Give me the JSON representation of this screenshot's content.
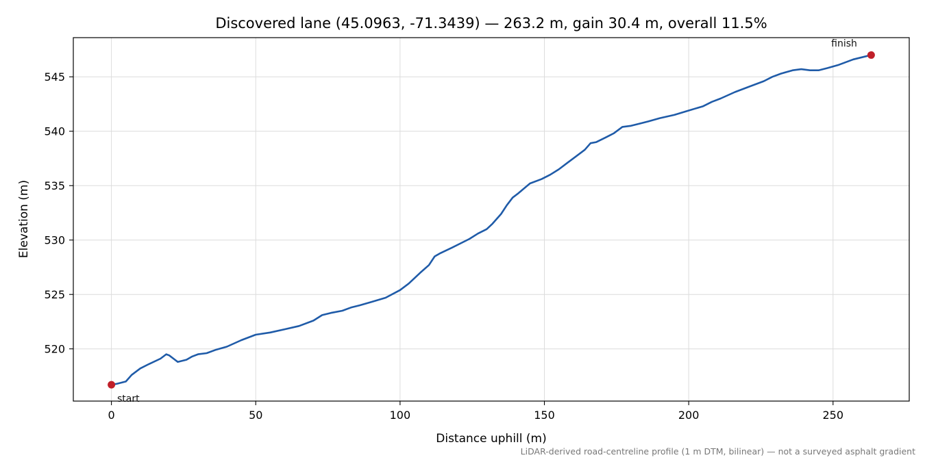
{
  "chart_data": {
    "type": "line",
    "title": "Discovered lane (45.0963, -71.3439) — 263.2 m, gain 30.4 m, overall 11.5%",
    "xlabel": "Distance uphill (m)",
    "ylabel": "Elevation (m)",
    "xlim": [
      -13.2,
      276.4
    ],
    "ylim": [
      515.2,
      548.6
    ],
    "x_ticks": [
      0,
      50,
      100,
      150,
      200,
      250
    ],
    "y_ticks": [
      520,
      525,
      530,
      535,
      540,
      545
    ],
    "grid": true,
    "line_color": "#1f5ba8",
    "marker_color": "#c0202a",
    "series": [
      {
        "x": [
          0,
          2,
          5,
          7,
          10,
          13,
          17,
          19,
          20,
          23,
          26,
          28,
          30,
          33,
          36,
          40,
          45,
          50,
          55,
          60,
          65,
          70,
          73,
          76,
          80,
          83,
          86,
          90,
          95,
          100,
          103,
          107,
          110,
          112,
          114,
          118,
          121,
          124,
          127,
          130,
          132,
          135,
          137,
          139,
          141,
          145,
          149,
          152,
          155,
          158,
          161,
          164,
          166,
          168,
          171,
          174,
          177,
          180,
          183,
          186,
          190,
          195,
          200,
          205,
          208,
          211,
          216,
          220,
          223,
          226,
          229,
          232,
          236,
          239,
          242,
          245,
          248,
          252,
          257,
          263.2
        ],
        "y": [
          516.7,
          516.8,
          517.0,
          517.6,
          518.2,
          518.6,
          519.1,
          519.5,
          519.4,
          518.8,
          519.0,
          519.3,
          519.5,
          519.6,
          519.9,
          520.2,
          520.8,
          521.3,
          521.5,
          521.8,
          522.1,
          522.6,
          523.1,
          523.3,
          523.5,
          523.8,
          524.0,
          524.3,
          524.7,
          525.4,
          526.0,
          527.0,
          527.7,
          528.5,
          528.8,
          529.3,
          529.7,
          530.1,
          530.6,
          531.0,
          531.5,
          532.4,
          533.2,
          533.9,
          534.3,
          535.2,
          535.6,
          536.0,
          536.5,
          537.1,
          537.7,
          538.3,
          538.9,
          539.0,
          539.4,
          539.8,
          540.4,
          540.5,
          540.7,
          540.9,
          541.2,
          541.5,
          541.9,
          542.3,
          542.7,
          543.0,
          543.6,
          544.0,
          544.3,
          544.6,
          545.0,
          545.3,
          545.6,
          545.7,
          545.6,
          545.6,
          545.8,
          546.1,
          546.6,
          547.0
        ]
      }
    ],
    "annotations": [
      {
        "text": "start",
        "x": 0,
        "y": 516.7
      },
      {
        "text": "finish",
        "x": 263.2,
        "y": 547.0
      }
    ],
    "footnote": "LiDAR-derived road-centreline profile (1 m DTM, bilinear) — not a surveyed asphalt gradient"
  }
}
